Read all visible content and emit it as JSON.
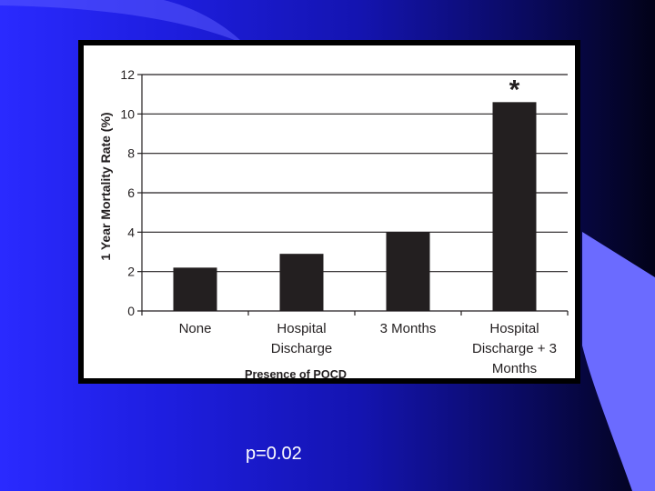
{
  "slide": {
    "caption": "p=0.02",
    "colors": {
      "accent": "#6b6bff",
      "background_start": "#2a2aff",
      "background_end": "#020218"
    }
  },
  "chart_data": {
    "type": "bar",
    "categories": [
      "None",
      "Hospital Discharge",
      "3 Months",
      "Hospital Discharge + 3 Months"
    ],
    "category_lines": [
      [
        "None"
      ],
      [
        "Hospital",
        "Discharge"
      ],
      [
        "3 Months"
      ],
      [
        "Hospital",
        "Discharge + 3",
        "Months"
      ]
    ],
    "values": [
      2.2,
      2.9,
      4.0,
      10.6
    ],
    "annotations": [
      {
        "category": "Hospital Discharge + 3 Months",
        "text": "*"
      }
    ],
    "title": "",
    "xlabel": "Presence of POCD",
    "ylabel": "1 Year Mortality Rate (%)",
    "ylim": [
      0,
      12
    ],
    "yticks": [
      0,
      2,
      4,
      6,
      8,
      10,
      12
    ],
    "grid": true,
    "bar_color": "#231f20"
  }
}
